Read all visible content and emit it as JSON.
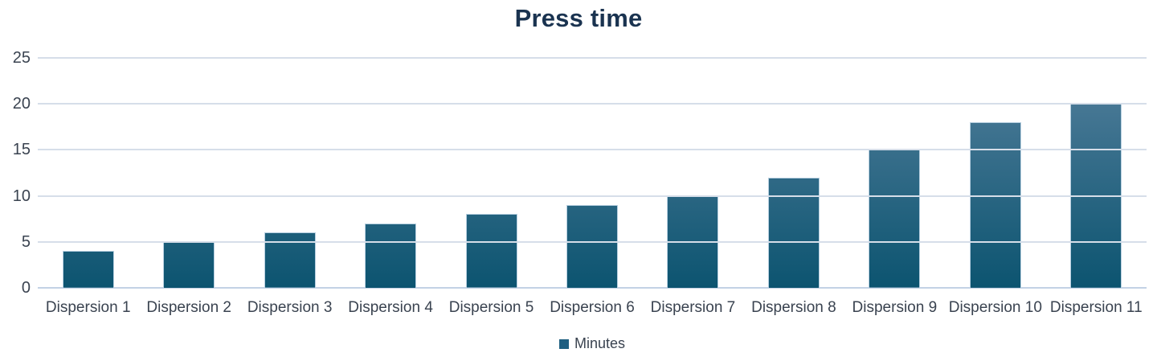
{
  "chart_data": {
    "type": "bar",
    "title": "Press time",
    "categories": [
      "Dispersion 1",
      "Dispersion 2",
      "Dispersion 3",
      "Dispersion 4",
      "Dispersion 5",
      "Dispersion 6",
      "Dispersion 7",
      "Dispersion 8",
      "Dispersion 9",
      "Dispersion 10",
      "Dispersion 11"
    ],
    "series": [
      {
        "name": "Minutes",
        "values": [
          4,
          5,
          6,
          7,
          8,
          9,
          10,
          12,
          15,
          18,
          20
        ]
      }
    ],
    "xlabel": "",
    "ylabel": "",
    "ylim": [
      0,
      25
    ],
    "yticks": [
      0,
      5,
      10,
      15,
      20,
      25
    ],
    "grid": true,
    "legend_position": "bottom",
    "colors": {
      "title_text": "#1a3350",
      "axis_text": "#3a4350",
      "gridline": "#d6dee9",
      "baseline": "#c3d2e5",
      "bar_top": "#55809d",
      "bar_bottom": "#0c5470",
      "bar_border": "#b7cfe0",
      "legend_swatch": "#1f5f81"
    }
  }
}
